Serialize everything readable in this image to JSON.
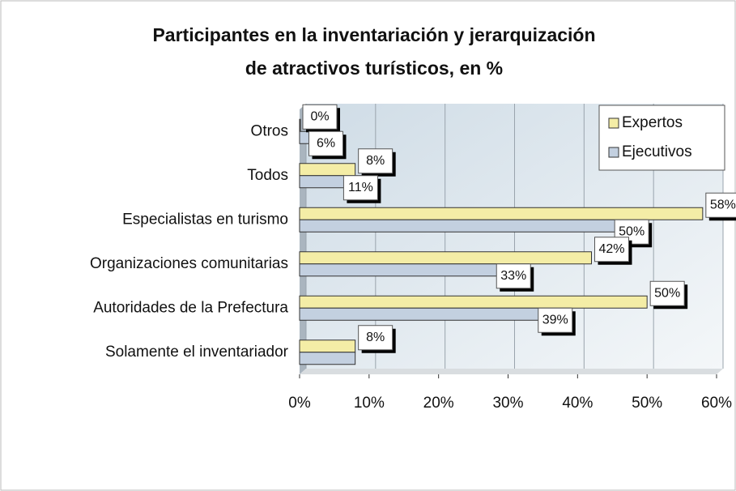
{
  "chart_data": {
    "type": "bar",
    "orientation": "horizontal",
    "title": "Participantes en la inventariación y jerarquización",
    "subtitle": "de atractivos turísticos, en %",
    "categories": [
      "Otros",
      "Todos",
      "Especialistas en turismo",
      "Organizaciones comunitarias",
      "Autoridades de la Prefectura",
      "Solamente el inventariador"
    ],
    "series": [
      {
        "name": "Expertos",
        "color": "#f4eda6",
        "values": [
          0,
          8,
          58,
          42,
          50,
          8
        ],
        "value_labels": [
          "0%",
          "8%",
          "58%",
          "42%",
          "50%",
          "8%"
        ]
      },
      {
        "name": "Ejecutivos",
        "color": "#c3d0e0",
        "values": [
          6,
          11,
          50,
          33,
          39,
          8
        ],
        "value_labels": [
          "6%",
          "11%",
          "50%",
          "33%",
          "39%",
          null
        ]
      }
    ],
    "xlim": [
      0,
      60
    ],
    "xticks": [
      {
        "value": 0,
        "label": "0%"
      },
      {
        "value": 10,
        "label": "10%"
      },
      {
        "value": 20,
        "label": "20%"
      },
      {
        "value": 30,
        "label": "30%"
      },
      {
        "value": 40,
        "label": "40%"
      },
      {
        "value": 50,
        "label": "50%"
      },
      {
        "value": 60,
        "label": "60%"
      }
    ],
    "grid": true,
    "legend": "upper right"
  }
}
